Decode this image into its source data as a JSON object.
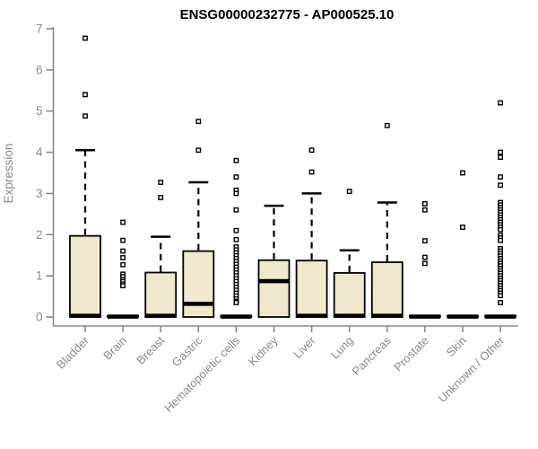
{
  "page": {
    "title": "ENSG00000232775 - AP000525.10"
  },
  "chart_data": {
    "type": "boxplot",
    "title": "ENSG00000232775 - AP000525.10",
    "ylabel": "Expression",
    "xlabel": "",
    "ylim": [
      0,
      7
    ],
    "yticks": [
      0,
      1,
      2,
      3,
      4,
      5,
      6,
      7
    ],
    "grid": false,
    "legend": "none",
    "categories": [
      "Bladder",
      "Brain",
      "Breast",
      "Gastric",
      "Hematopoietic cells",
      "Kidney",
      "Liver",
      "Lung",
      "Pancreas",
      "Prostate",
      "Skin",
      "Unknown / Other"
    ],
    "series": [
      {
        "name": "Bladder",
        "q1": 0,
        "median": 0.03,
        "q3": 1.97,
        "whisker_low": 0,
        "whisker_high": 4.05,
        "outliers": [
          6.77,
          5.4,
          4.88
        ]
      },
      {
        "name": "Brain",
        "q1": 0,
        "median": 0.01,
        "q3": 0.03,
        "whisker_low": 0,
        "whisker_high": 0.03,
        "outliers": [
          2.3,
          1.86,
          1.6,
          1.44,
          1.27,
          1.04,
          0.98,
          0.91,
          0.86,
          0.8,
          0.76
        ]
      },
      {
        "name": "Breast",
        "q1": 0,
        "median": 0.03,
        "q3": 1.08,
        "whisker_low": 0,
        "whisker_high": 1.95,
        "outliers": [
          3.27,
          2.9
        ]
      },
      {
        "name": "Gastric",
        "q1": 0,
        "median": 0.32,
        "q3": 1.6,
        "whisker_low": 0,
        "whisker_high": 3.27,
        "outliers": [
          4.75,
          4.05
        ]
      },
      {
        "name": "Hematopoietic cells",
        "q1": 0,
        "median": 0.01,
        "q3": 0.03,
        "whisker_low": 0,
        "whisker_high": 0.03,
        "outliers": [
          3.8,
          3.4,
          3.08,
          3.0,
          2.6,
          2.1,
          1.88,
          1.7,
          1.63,
          1.56,
          1.49,
          1.42,
          1.35,
          1.28,
          1.21,
          1.14,
          1.07,
          1.0,
          0.93,
          0.86,
          0.79,
          0.72,
          0.65,
          0.58,
          0.51,
          0.44,
          0.38,
          0.35
        ]
      },
      {
        "name": "Kidney",
        "q1": 0,
        "median": 0.87,
        "q3": 1.38,
        "whisker_low": 0,
        "whisker_high": 2.7,
        "outliers": []
      },
      {
        "name": "Liver",
        "q1": 0,
        "median": 0.03,
        "q3": 1.37,
        "whisker_low": 0,
        "whisker_high": 3.0,
        "outliers": [
          4.05,
          3.52
        ]
      },
      {
        "name": "Lung",
        "q1": 0,
        "median": 0.03,
        "q3": 1.07,
        "whisker_low": 0,
        "whisker_high": 1.62,
        "outliers": [
          3.05
        ]
      },
      {
        "name": "Pancreas",
        "q1": 0,
        "median": 0.03,
        "q3": 1.33,
        "whisker_low": 0,
        "whisker_high": 2.78,
        "outliers": [
          4.65
        ]
      },
      {
        "name": "Prostate",
        "q1": 0,
        "median": 0.01,
        "q3": 0.03,
        "whisker_low": 0,
        "whisker_high": 0.03,
        "outliers": [
          2.75,
          2.6,
          1.85,
          1.45,
          1.3
        ]
      },
      {
        "name": "Skin",
        "q1": 0,
        "median": 0.01,
        "q3": 0.03,
        "whisker_low": 0,
        "whisker_high": 0.03,
        "outliers": [
          3.5,
          2.18
        ]
      },
      {
        "name": "Unknown / Other",
        "q1": 0,
        "median": 0.01,
        "q3": 0.03,
        "whisker_low": 0,
        "whisker_high": 0.03,
        "outliers": [
          5.2,
          4.0,
          3.88,
          3.4,
          3.2,
          2.78,
          2.72,
          2.66,
          2.6,
          2.54,
          2.48,
          2.42,
          2.36,
          2.3,
          2.24,
          2.18,
          2.12,
          1.98,
          1.92,
          1.86,
          1.66,
          1.6,
          1.54,
          1.48,
          1.42,
          1.36,
          1.3,
          1.24,
          1.18,
          1.12,
          1.06,
          1.0,
          0.94,
          0.88,
          0.82,
          0.76,
          0.7,
          0.64,
          0.58,
          0.52,
          0.35
        ]
      }
    ],
    "style": {
      "box_fill": "#efe8cd",
      "box_stroke": "#000000",
      "median_color": "#000000",
      "whisker_color": "#000000",
      "outlier_stroke": "#000000",
      "axis_color": "#8a8a8a",
      "tick_label_color": "#8a8a8a",
      "title_color": "#000000",
      "background": "#ffffff"
    }
  }
}
